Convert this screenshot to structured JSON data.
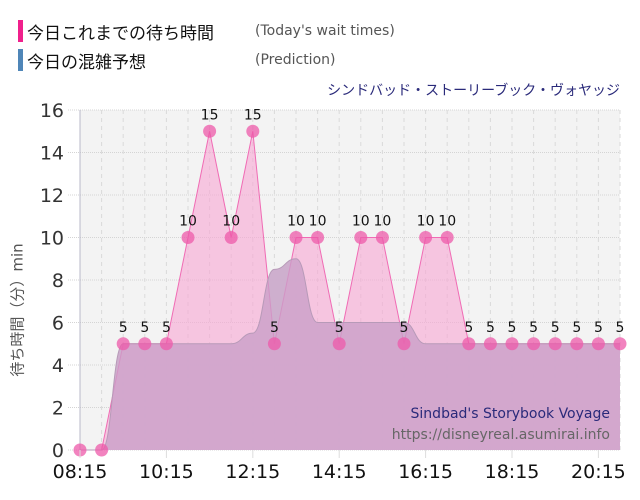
{
  "legend": {
    "actual": {
      "label_jp": "今日これまでの待ち時間",
      "label_en": "(Today's wait times)",
      "color": "#f0208c"
    },
    "prediction": {
      "label_jp": "今日の混雑予想",
      "label_en": "(Prediction)",
      "color": "#4f86b8"
    }
  },
  "ride": {
    "name_jp": "シンドバッド・ストーリーブック・ヴォヤッジ",
    "name_en": "Sindbad's Storybook Voyage"
  },
  "watermark_url": "https://disneyreal.asumirai.info",
  "colors": {
    "actual_fill": "#f9a6d4",
    "actual_line": "#f06bb4",
    "actual_point": "#ee5aaa",
    "prediction_fill": "#c9a0c9",
    "prediction_gray": "#d8d8d8",
    "plot_bg": "#f3f3f3",
    "grid": "#d4d4d4"
  },
  "chart_data": {
    "type": "area",
    "title": "シンドバッド・ストーリーブック・ヴォヤッジ",
    "xlabel": "",
    "ylabel": "待ち時間（分）min",
    "ylim": [
      0,
      16
    ],
    "yticks": [
      0,
      2,
      4,
      6,
      8,
      10,
      12,
      14,
      16
    ],
    "xticks": [
      "08:15",
      "10:15",
      "12:15",
      "14:15",
      "16:15",
      "18:15",
      "20:15"
    ],
    "grid": true,
    "legend_position": "top-left",
    "x": [
      "08:15",
      "08:45",
      "09:15",
      "09:45",
      "10:15",
      "10:45",
      "11:15",
      "11:45",
      "12:15",
      "12:45",
      "13:15",
      "13:45",
      "14:15",
      "14:45",
      "15:15",
      "15:45",
      "16:15",
      "16:45",
      "17:15",
      "17:45",
      "18:15",
      "18:45",
      "19:15",
      "19:45",
      "20:15",
      "20:45"
    ],
    "series": [
      {
        "name": "今日これまでの待ち時間 (Today's wait times)",
        "values": [
          0,
          0,
          5,
          5,
          5,
          10,
          15,
          10,
          15,
          5,
          10,
          10,
          5,
          10,
          10,
          5,
          10,
          10,
          5,
          5,
          5,
          5,
          5,
          5,
          5,
          5
        ],
        "data_labels": true
      },
      {
        "name": "今日の混雑予想 (Prediction)",
        "values": [
          0,
          0,
          5,
          5,
          5,
          5,
          5,
          5,
          5.5,
          8.5,
          9,
          6,
          6,
          6,
          6,
          6,
          5,
          5,
          5,
          5,
          5,
          5,
          5,
          5,
          5,
          5
        ]
      }
    ]
  }
}
